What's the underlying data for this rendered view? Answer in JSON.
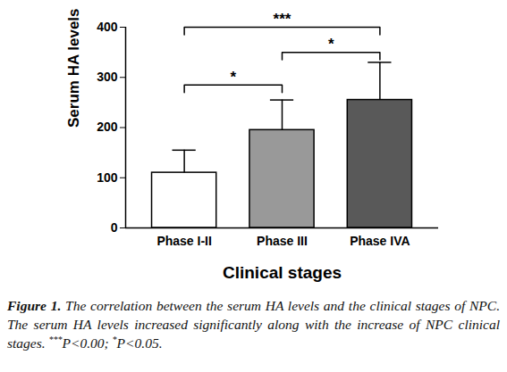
{
  "chart_data": {
    "type": "bar",
    "categories": [
      "Phase I-II",
      "Phase III",
      "Phase IVA"
    ],
    "values": [
      110,
      195,
      255
    ],
    "errors": [
      45,
      60,
      75
    ],
    "colors": [
      "#ffffff",
      "#999999",
      "#595959"
    ],
    "xlabel": "Clinical stages",
    "ylabel": "Serum HA levels",
    "ylim": [
      0,
      400
    ],
    "yticks": [
      0,
      100,
      200,
      300,
      400
    ],
    "annotations": [
      {
        "from": "Phase I-II",
        "to": "Phase III",
        "y": 285,
        "text": "*"
      },
      {
        "from": "Phase III",
        "to": "Phase IVA",
        "y": 350,
        "text": "*"
      },
      {
        "from": "Phase I-II",
        "to": "Phase IVA",
        "y": 400,
        "text": "***"
      }
    ],
    "caption": {
      "label": "Figure 1.",
      "text": "The correlation between the serum HA levels and the clinical stages of NPC. The serum HA levels increased significantly along with the increase of NPC clinical stages. ***P<0.00; *P<0.05."
    }
  }
}
